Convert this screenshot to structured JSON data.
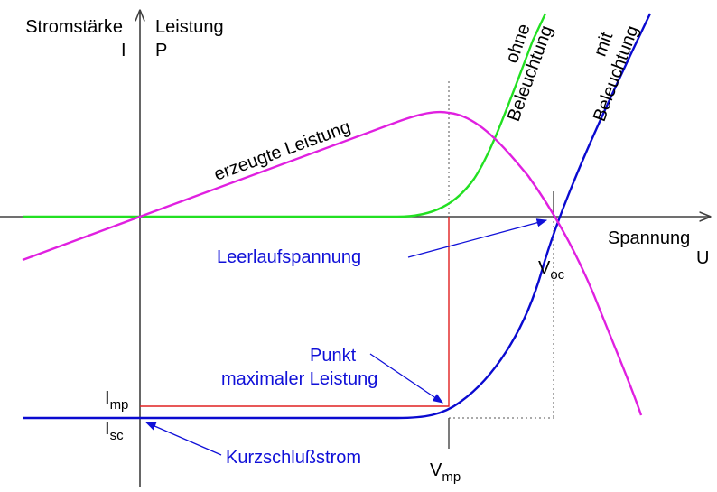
{
  "axes": {
    "y_top": "Stromstärke",
    "y_symbol": "I",
    "y2_top": "Leistung",
    "y2_symbol": "P",
    "x_label": "Spannung",
    "x_symbol": "U"
  },
  "curves": {
    "dark_line1": "ohne",
    "dark_line2": "Beleuchtung",
    "lit_line1": "mit",
    "lit_line2": "Beleuchtung",
    "power": "erzeugte Leistung"
  },
  "annotations": {
    "open_circuit": "Leerlaufspannung",
    "mpp_line1": "Punkt",
    "mpp_line2": "maximaler Leistung",
    "short_circuit": "Kurzschlußstrom"
  },
  "points": {
    "voc": {
      "main": "V",
      "sub": "oc"
    },
    "vmp": {
      "main": "V",
      "sub": "mp"
    },
    "imp": {
      "main": "I",
      "sub": "mp"
    },
    "isc": {
      "main": "I",
      "sub": "sc"
    }
  },
  "colors": {
    "axis": "#404040",
    "dark_curve": "#22e022",
    "lit_curve": "#0a0ad0",
    "power_curve": "#e020e0",
    "mpp_lines": "#e02020",
    "annotation_text": "#1010d8"
  }
}
